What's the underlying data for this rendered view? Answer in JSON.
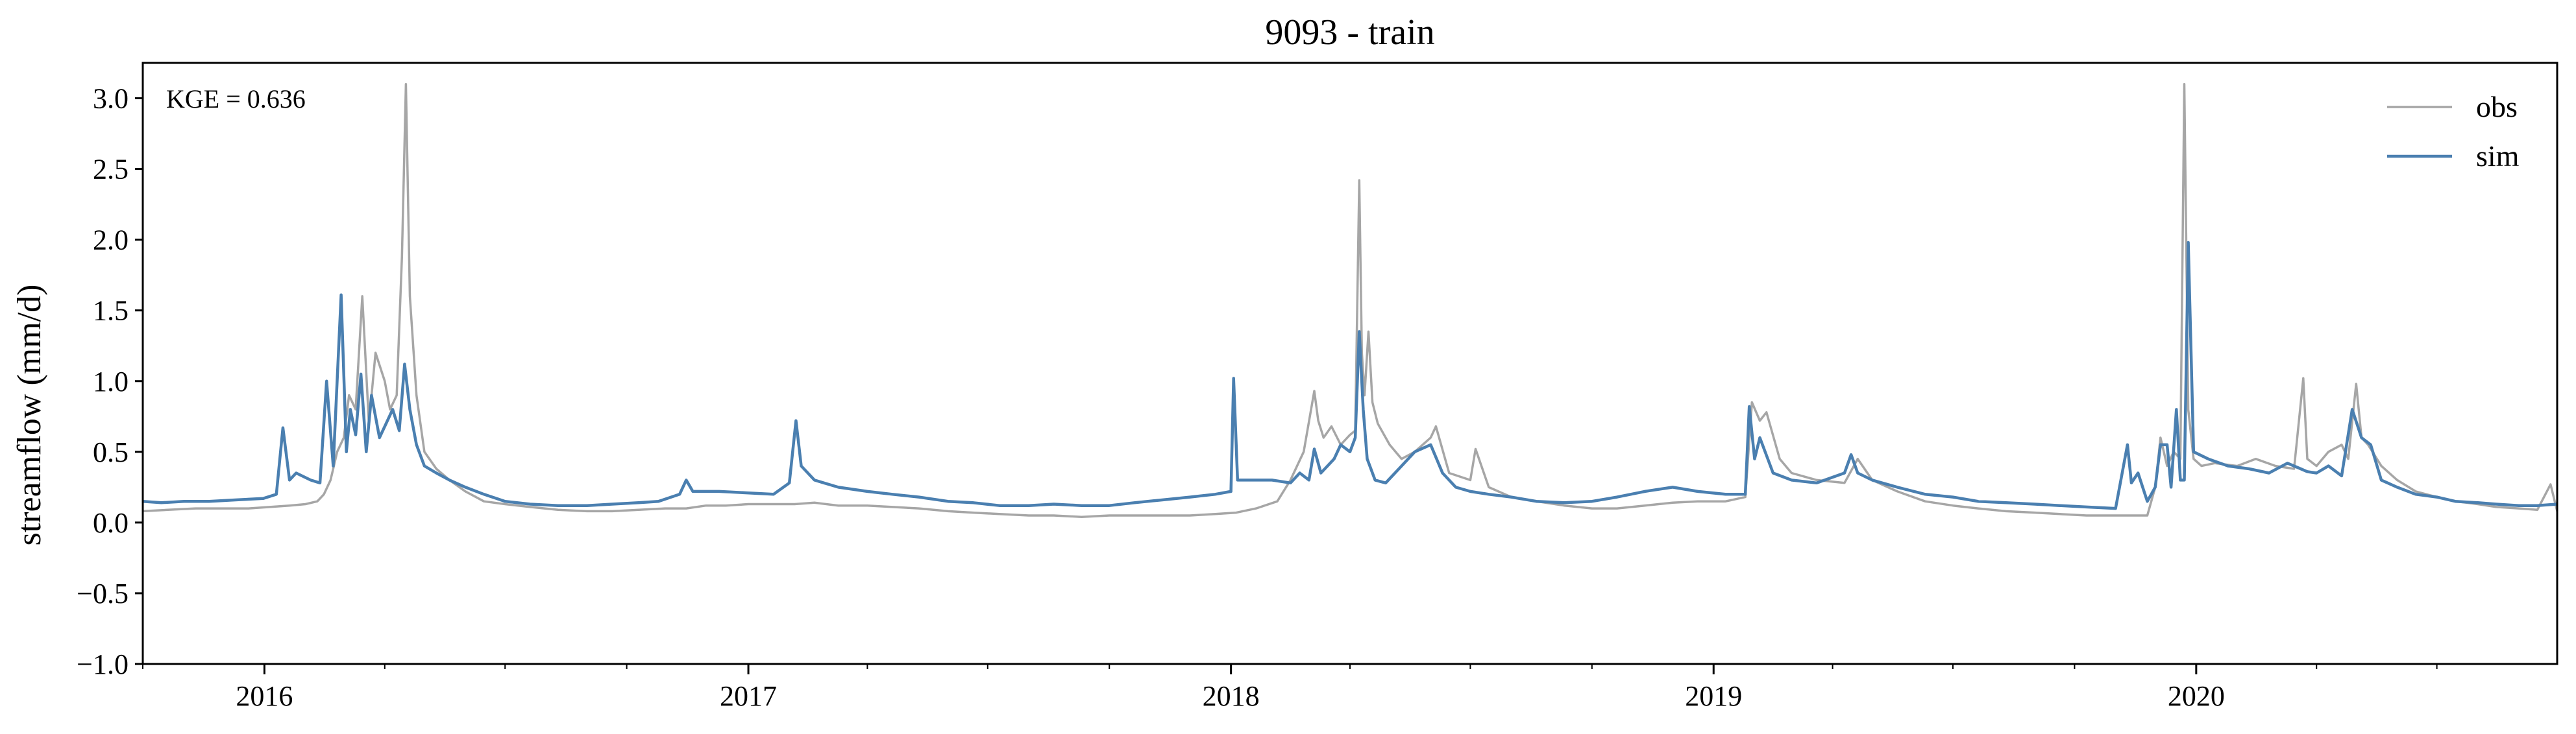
{
  "chart_data": {
    "type": "line",
    "title": "9093 - train",
    "xlabel": "",
    "ylabel": "streamflow (mm/d)",
    "annotation": "KGE = 0.636",
    "xlim": [
      "2015-10-01",
      "2020-09-30"
    ],
    "ylim": [
      -1.0,
      3.25
    ],
    "yticks": [
      -1.0,
      -0.5,
      0.0,
      0.5,
      1.0,
      1.5,
      2.0,
      2.5,
      3.0
    ],
    "ytick_labels": [
      "−1.0",
      "−0.5",
      "0.0",
      "0.5",
      "1.0",
      "1.5",
      "2.0",
      "2.5",
      "3.0"
    ],
    "xticks": [
      "2016-01-01",
      "2017-01-01",
      "2018-01-01",
      "2019-01-01",
      "2020-01-01"
    ],
    "xtick_labels": [
      "2016",
      "2017",
      "2018",
      "2019",
      "2020"
    ],
    "grid": false,
    "legend_position": "top-right",
    "series": [
      {
        "name": "obs",
        "color": "#a6a6a6",
        "x": [
          "2015-10-01",
          "2015-10-20",
          "2015-11-10",
          "2015-12-01",
          "2015-12-20",
          "2016-01-05",
          "2016-01-20",
          "2016-02-01",
          "2016-02-10",
          "2016-02-15",
          "2016-02-20",
          "2016-02-25",
          "2016-03-01",
          "2016-03-05",
          "2016-03-10",
          "2016-03-15",
          "2016-03-20",
          "2016-03-25",
          "2016-04-01",
          "2016-04-05",
          "2016-04-10",
          "2016-04-14",
          "2016-04-17",
          "2016-04-20",
          "2016-04-25",
          "2016-05-01",
          "2016-05-10",
          "2016-05-20",
          "2016-06-01",
          "2016-06-15",
          "2016-07-01",
          "2016-07-20",
          "2016-08-10",
          "2016-09-01",
          "2016-09-20",
          "2016-10-10",
          "2016-10-30",
          "2016-11-15",
          "2016-11-30",
          "2016-12-15",
          "2017-01-01",
          "2017-01-20",
          "2017-02-05",
          "2017-02-20",
          "2017-03-10",
          "2017-04-01",
          "2017-04-20",
          "2017-05-10",
          "2017-06-01",
          "2017-06-20",
          "2017-07-10",
          "2017-08-01",
          "2017-08-20",
          "2017-09-10",
          "2017-10-01",
          "2017-10-20",
          "2017-11-10",
          "2017-12-01",
          "2017-12-20",
          "2018-01-05",
          "2018-01-20",
          "2018-02-05",
          "2018-02-15",
          "2018-02-25",
          "2018-03-05",
          "2018-03-08",
          "2018-03-12",
          "2018-03-18",
          "2018-03-25",
          "2018-04-01",
          "2018-04-05",
          "2018-04-08",
          "2018-04-10",
          "2018-04-12",
          "2018-04-15",
          "2018-04-18",
          "2018-04-22",
          "2018-05-01",
          "2018-05-10",
          "2018-05-20",
          "2018-06-01",
          "2018-06-05",
          "2018-06-15",
          "2018-07-01",
          "2018-07-05",
          "2018-07-15",
          "2018-08-01",
          "2018-08-20",
          "2018-09-10",
          "2018-10-01",
          "2018-10-20",
          "2018-11-10",
          "2018-12-01",
          "2018-12-20",
          "2019-01-10",
          "2019-01-25",
          "2019-01-30",
          "2019-02-05",
          "2019-02-10",
          "2019-02-20",
          "2019-03-01",
          "2019-03-20",
          "2019-04-10",
          "2019-04-20",
          "2019-05-01",
          "2019-05-20",
          "2019-06-10",
          "2019-07-01",
          "2019-07-20",
          "2019-08-10",
          "2019-09-01",
          "2019-09-20",
          "2019-10-10",
          "2019-11-01",
          "2019-11-15",
          "2019-11-25",
          "2019-12-01",
          "2019-12-05",
          "2019-12-10",
          "2019-12-15",
          "2019-12-20",
          "2019-12-23",
          "2019-12-26",
          "2019-12-30",
          "2020-01-05",
          "2020-01-15",
          "2020-02-01",
          "2020-02-15",
          "2020-03-01",
          "2020-03-15",
          "2020-03-22",
          "2020-03-25",
          "2020-04-01",
          "2020-04-10",
          "2020-04-20",
          "2020-04-25",
          "2020-05-01",
          "2020-05-05",
          "2020-05-10",
          "2020-05-20",
          "2020-06-01",
          "2020-06-15",
          "2020-07-01",
          "2020-07-15",
          "2020-08-01",
          "2020-08-15",
          "2020-09-01",
          "2020-09-15",
          "2020-09-25",
          "2020-09-30"
        ],
        "y": [
          0.08,
          0.09,
          0.1,
          0.1,
          0.1,
          0.11,
          0.12,
          0.13,
          0.15,
          0.2,
          0.3,
          0.5,
          0.6,
          0.9,
          0.8,
          1.6,
          0.7,
          1.2,
          1.0,
          0.8,
          0.9,
          1.88,
          3.1,
          1.6,
          0.9,
          0.5,
          0.38,
          0.3,
          0.22,
          0.15,
          0.13,
          0.11,
          0.09,
          0.08,
          0.08,
          0.09,
          0.1,
          0.1,
          0.12,
          0.12,
          0.13,
          0.13,
          0.13,
          0.14,
          0.12,
          0.12,
          0.11,
          0.1,
          0.08,
          0.07,
          0.06,
          0.05,
          0.05,
          0.04,
          0.05,
          0.05,
          0.05,
          0.05,
          0.06,
          0.07,
          0.1,
          0.15,
          0.3,
          0.5,
          0.93,
          0.72,
          0.6,
          0.68,
          0.55,
          0.62,
          0.65,
          2.42,
          1.2,
          0.9,
          1.35,
          0.85,
          0.7,
          0.55,
          0.45,
          0.5,
          0.6,
          0.68,
          0.35,
          0.3,
          0.52,
          0.25,
          0.18,
          0.15,
          0.12,
          0.1,
          0.1,
          0.12,
          0.14,
          0.15,
          0.15,
          0.18,
          0.85,
          0.72,
          0.78,
          0.45,
          0.35,
          0.3,
          0.28,
          0.45,
          0.3,
          0.22,
          0.15,
          0.12,
          0.1,
          0.08,
          0.07,
          0.06,
          0.05,
          0.05,
          0.05,
          0.05,
          0.25,
          0.6,
          0.4,
          0.5,
          0.45,
          3.1,
          0.8,
          0.45,
          0.4,
          0.42,
          0.4,
          0.45,
          0.4,
          0.38,
          1.02,
          0.45,
          0.4,
          0.5,
          0.55,
          0.45,
          0.98,
          0.6,
          0.55,
          0.4,
          0.3,
          0.22,
          0.18,
          0.15,
          0.13,
          0.11,
          0.1,
          0.09,
          0.27,
          0.08
        ]
      },
      {
        "name": "sim",
        "color": "#4a7fb0",
        "x": [
          "2015-10-01",
          "2015-10-15",
          "2015-11-01",
          "2015-11-20",
          "2015-12-10",
          "2015-12-31",
          "2016-01-10",
          "2016-01-15",
          "2016-01-20",
          "2016-01-25",
          "2016-02-05",
          "2016-02-12",
          "2016-02-17",
          "2016-02-22",
          "2016-02-28",
          "2016-03-03",
          "2016-03-06",
          "2016-03-10",
          "2016-03-14",
          "2016-03-18",
          "2016-03-22",
          "2016-03-28",
          "2016-04-02",
          "2016-04-07",
          "2016-04-12",
          "2016-04-16",
          "2016-04-20",
          "2016-04-25",
          "2016-05-01",
          "2016-05-10",
          "2016-05-20",
          "2016-06-01",
          "2016-06-15",
          "2016-07-01",
          "2016-07-20",
          "2016-08-10",
          "2016-09-01",
          "2016-09-20",
          "2016-10-10",
          "2016-10-25",
          "2016-11-10",
          "2016-11-15",
          "2016-11-20",
          "2016-12-10",
          "2016-12-31",
          "2017-01-20",
          "2017-02-01",
          "2017-02-06",
          "2017-02-10",
          "2017-02-20",
          "2017-03-10",
          "2017-04-01",
          "2017-04-20",
          "2017-05-10",
          "2017-06-01",
          "2017-06-20",
          "2017-07-10",
          "2017-08-01",
          "2017-08-20",
          "2017-09-10",
          "2017-10-01",
          "2017-10-20",
          "2017-11-10",
          "2017-12-01",
          "2017-12-20",
          "2018-01-01",
          "2018-01-03",
          "2018-01-06",
          "2018-01-15",
          "2018-02-01",
          "2018-02-15",
          "2018-02-22",
          "2018-03-01",
          "2018-03-05",
          "2018-03-10",
          "2018-03-15",
          "2018-03-20",
          "2018-03-25",
          "2018-04-01",
          "2018-04-05",
          "2018-04-08",
          "2018-04-11",
          "2018-04-14",
          "2018-04-20",
          "2018-04-28",
          "2018-05-10",
          "2018-05-20",
          "2018-06-01",
          "2018-06-10",
          "2018-06-20",
          "2018-07-01",
          "2018-07-15",
          "2018-08-01",
          "2018-08-20",
          "2018-09-10",
          "2018-10-01",
          "2018-10-20",
          "2018-11-10",
          "2018-12-01",
          "2018-12-20",
          "2019-01-10",
          "2019-01-25",
          "2019-01-28",
          "2019-02-01",
          "2019-02-05",
          "2019-02-15",
          "2019-03-01",
          "2019-03-20",
          "2019-04-10",
          "2019-04-15",
          "2019-04-20",
          "2019-05-01",
          "2019-05-20",
          "2019-06-10",
          "2019-07-01",
          "2019-07-20",
          "2019-08-10",
          "2019-09-01",
          "2019-09-20",
          "2019-10-10",
          "2019-11-01",
          "2019-11-10",
          "2019-11-13",
          "2019-11-18",
          "2019-11-25",
          "2019-12-01",
          "2019-12-05",
          "2019-12-10",
          "2019-12-13",
          "2019-12-17",
          "2019-12-20",
          "2019-12-23",
          "2019-12-26",
          "2019-12-30",
          "2020-01-10",
          "2020-01-25",
          "2020-02-10",
          "2020-02-25",
          "2020-03-10",
          "2020-03-20",
          "2020-03-25",
          "2020-04-01",
          "2020-04-10",
          "2020-04-20",
          "2020-04-28",
          "2020-05-05",
          "2020-05-12",
          "2020-05-20",
          "2020-06-01",
          "2020-06-15",
          "2020-07-01",
          "2020-07-15",
          "2020-08-01",
          "2020-08-15",
          "2020-09-01",
          "2020-09-15",
          "2020-09-30"
        ],
        "y": [
          0.15,
          0.14,
          0.15,
          0.15,
          0.16,
          0.17,
          0.2,
          0.67,
          0.3,
          0.35,
          0.3,
          0.28,
          1.0,
          0.4,
          1.61,
          0.5,
          0.8,
          0.62,
          1.05,
          0.5,
          0.9,
          0.6,
          0.7,
          0.8,
          0.65,
          1.12,
          0.8,
          0.55,
          0.4,
          0.35,
          0.3,
          0.25,
          0.2,
          0.15,
          0.13,
          0.12,
          0.12,
          0.13,
          0.14,
          0.15,
          0.2,
          0.3,
          0.22,
          0.22,
          0.21,
          0.2,
          0.28,
          0.72,
          0.4,
          0.3,
          0.25,
          0.22,
          0.2,
          0.18,
          0.15,
          0.14,
          0.12,
          0.12,
          0.13,
          0.12,
          0.12,
          0.14,
          0.16,
          0.18,
          0.2,
          0.22,
          1.02,
          0.3,
          0.3,
          0.3,
          0.28,
          0.35,
          0.3,
          0.52,
          0.35,
          0.4,
          0.45,
          0.55,
          0.5,
          0.6,
          1.35,
          0.8,
          0.45,
          0.3,
          0.28,
          0.4,
          0.5,
          0.55,
          0.35,
          0.25,
          0.22,
          0.2,
          0.18,
          0.15,
          0.14,
          0.15,
          0.18,
          0.22,
          0.25,
          0.22,
          0.2,
          0.2,
          0.82,
          0.45,
          0.6,
          0.35,
          0.3,
          0.28,
          0.35,
          0.48,
          0.35,
          0.3,
          0.25,
          0.2,
          0.18,
          0.15,
          0.14,
          0.13,
          0.12,
          0.11,
          0.1,
          0.55,
          0.28,
          0.35,
          0.15,
          0.25,
          0.55,
          0.55,
          0.25,
          0.8,
          0.3,
          0.3,
          1.98,
          0.5,
          0.45,
          0.4,
          0.38,
          0.35,
          0.42,
          0.38,
          0.36,
          0.35,
          0.4,
          0.33,
          0.8,
          0.6,
          0.55,
          0.3,
          0.25,
          0.2,
          0.18,
          0.15,
          0.14,
          0.13,
          0.12,
          0.12,
          0.13
        ]
      }
    ]
  }
}
